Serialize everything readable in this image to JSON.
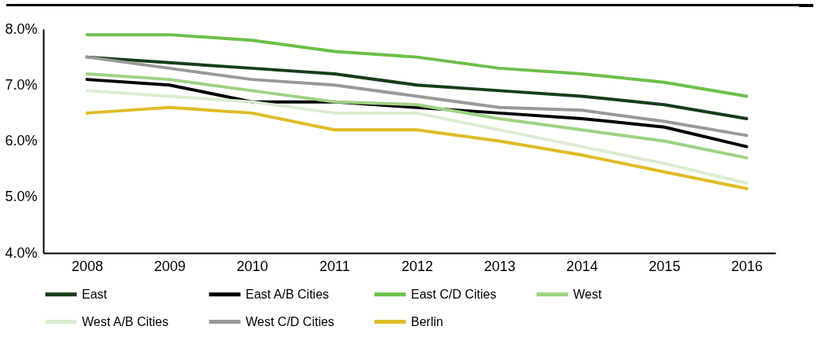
{
  "chart_data": {
    "type": "line",
    "categories": [
      "2008",
      "2009",
      "2010",
      "2011",
      "2012",
      "2013",
      "2014",
      "2015",
      "2016"
    ],
    "ylim": [
      4,
      8
    ],
    "yticks": [
      {
        "value": 4,
        "label": "4.0%"
      },
      {
        "value": 5,
        "label": "5.0%"
      },
      {
        "value": 6,
        "label": "6.0%"
      },
      {
        "value": 7,
        "label": "7.0%"
      },
      {
        "value": 8,
        "label": "8.0%"
      }
    ],
    "grid": false,
    "legend": "bottom",
    "marker": "none",
    "line_style": "solid",
    "series": [
      {
        "name": "East",
        "color": "#173d1a",
        "values": [
          7.5,
          7.4,
          7.3,
          7.2,
          7.0,
          6.9,
          6.8,
          6.65,
          6.4
        ]
      },
      {
        "name": "East A/B Cities",
        "color": "#000000",
        "values": [
          7.1,
          7.0,
          6.7,
          6.7,
          6.6,
          6.5,
          6.4,
          6.25,
          5.9
        ]
      },
      {
        "name": "East C/D Cities",
        "color": "#6cc04a",
        "values": [
          7.9,
          7.9,
          7.8,
          7.6,
          7.5,
          7.3,
          7.2,
          7.05,
          6.8
        ]
      },
      {
        "name": "West",
        "color": "#9dd383",
        "values": [
          7.2,
          7.1,
          6.9,
          6.7,
          6.65,
          6.4,
          6.2,
          6.0,
          5.7
        ]
      },
      {
        "name": "West A/B Cities",
        "color": "#d9edd0",
        "values": [
          6.9,
          6.8,
          6.7,
          6.5,
          6.5,
          6.2,
          5.9,
          5.6,
          5.25
        ]
      },
      {
        "name": "West C/D Cities",
        "color": "#999999",
        "values": [
          7.5,
          7.3,
          7.1,
          7.0,
          6.8,
          6.6,
          6.55,
          6.35,
          6.1
        ]
      },
      {
        "name": "Berlin",
        "color": "#dfbc27",
        "values": [
          6.5,
          6.6,
          6.5,
          6.2,
          6.2,
          6.0,
          5.75,
          5.45,
          5.15
        ]
      }
    ]
  }
}
